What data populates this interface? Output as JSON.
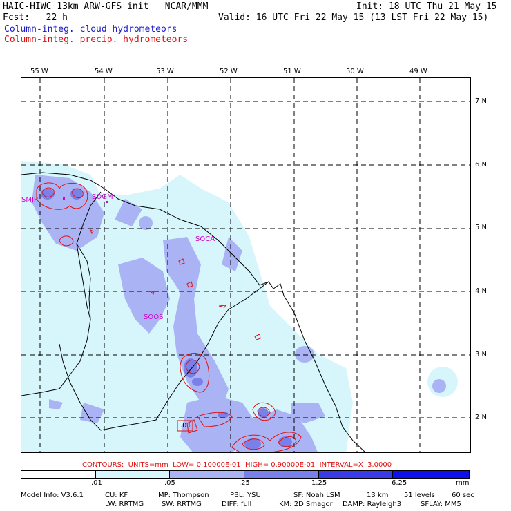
{
  "header": {
    "title": "HAIC-HIWC 13km ARW-GFS init   NCAR/MMM",
    "fcst": "Fcst:   22 h",
    "init": "Init: 18 UTC Thu 21 May 15",
    "valid": "Valid: 16 UTC Fri 22 May 15 (13 LST Fri 22 May 15)",
    "field1": "Column-integ. cloud hydrometeors",
    "field2": "Column-integ. precip. hydrometeors",
    "field1_color": "#1a1acc",
    "field2_color": "#e01010"
  },
  "axes": {
    "lon_labels": [
      "55 W",
      "54 W",
      "53 W",
      "52 W",
      "51 W",
      "50 W",
      "49 W"
    ],
    "lat_labels": [
      "7 N",
      "6 N",
      "5 N",
      "4 N",
      "3 N",
      "2 N"
    ]
  },
  "stations": [
    "SMJP",
    "SOGM",
    "SOCA",
    "SOOS"
  ],
  "contour_label": ".01",
  "contours_text": "CONTOURS:  UNITS=mm  LOW= 0.10000E-01  HIGH= 0.90000E-01  INTERVAL=X  3.0000",
  "colorbar": {
    "labels": [
      ".01",
      ".05",
      ".25",
      "1.25",
      "6.25"
    ],
    "units": "mm",
    "colors": [
      "#ffffff",
      "#d6f6fc",
      "#aab4f4",
      "#7a80ea",
      "#3a3ae6",
      "#1010ee"
    ]
  },
  "footer": {
    "line1": [
      "Model Info: V3.6.1",
      "CU: KF",
      "MP: Thompson",
      "PBL: YSU",
      "SF: Noah LSM",
      "13 km",
      "51 levels",
      "60 sec"
    ],
    "line2": [
      "LW: RRTMG",
      "SW: RRTMG",
      "DIFF: full",
      "KM: 2D Smagor",
      "DAMP: Rayleigh3",
      "SFLAY: MM5"
    ]
  },
  "map_colors": {
    "light": "#d6f6fc",
    "mid": "#aab4f4",
    "dark": "#7a80ea",
    "precip": "#e01010",
    "coast": "#000000",
    "grid": "#000000"
  }
}
